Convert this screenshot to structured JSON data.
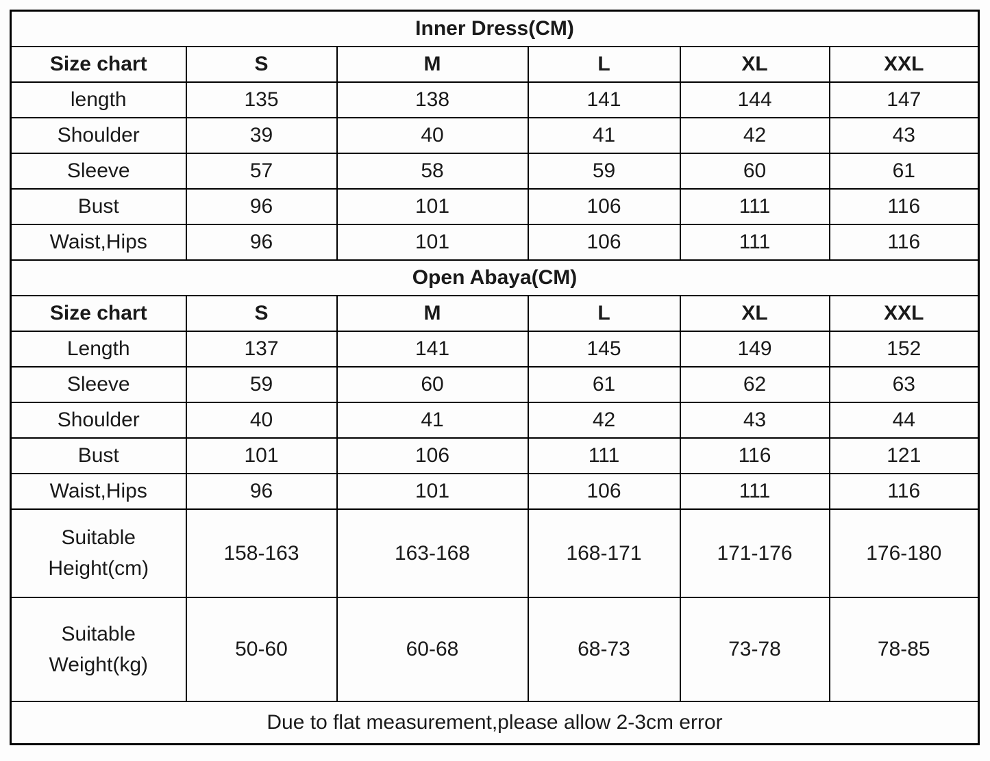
{
  "page": {
    "background": "#fdfdfd",
    "text_color": "#1a1a1a",
    "border_color": "#000000"
  },
  "chart_data": [
    {
      "type": "table",
      "title": "Inner Dress(CM)",
      "columns": [
        "Size chart",
        "S",
        "M",
        "L",
        "XL",
        "XXL"
      ],
      "rows": [
        {
          "label": "length",
          "values": [
            "135",
            "138",
            "141",
            "144",
            "147"
          ]
        },
        {
          "label": "Shoulder",
          "values": [
            "39",
            "40",
            "41",
            "42",
            "43"
          ]
        },
        {
          "label": "Sleeve",
          "values": [
            "57",
            "58",
            "59",
            "60",
            "61"
          ]
        },
        {
          "label": "Bust",
          "values": [
            "96",
            "101",
            "106",
            "111",
            "116"
          ]
        },
        {
          "label": "Waist,Hips",
          "values": [
            "96",
            "101",
            "106",
            "111",
            "116"
          ]
        }
      ]
    },
    {
      "type": "table",
      "title": "Open Abaya(CM)",
      "columns": [
        "Size chart",
        "S",
        "M",
        "L",
        "XL",
        "XXL"
      ],
      "rows": [
        {
          "label": "Length",
          "values": [
            "137",
            "141",
            "145",
            "149",
            "152"
          ]
        },
        {
          "label": "Sleeve",
          "values": [
            "59",
            "60",
            "61",
            "62",
            "63"
          ]
        },
        {
          "label": "Shoulder",
          "values": [
            "40",
            "41",
            "42",
            "43",
            "44"
          ]
        },
        {
          "label": "Bust",
          "values": [
            "101",
            "106",
            "111",
            "116",
            "121"
          ]
        },
        {
          "label": "Waist,Hips",
          "values": [
            "96",
            "101",
            "106",
            "111",
            "116"
          ]
        },
        {
          "label": "Suitable Height(cm)",
          "values": [
            "158-163",
            "163-168",
            "168-171",
            "171-176",
            "176-180"
          ]
        },
        {
          "label": "Suitable Weight(kg)",
          "values": [
            "50-60",
            "60-68",
            "68-73",
            "73-78",
            "78-85"
          ]
        }
      ]
    }
  ],
  "footer": {
    "note": "Due to flat measurement,please allow 2-3cm error"
  }
}
